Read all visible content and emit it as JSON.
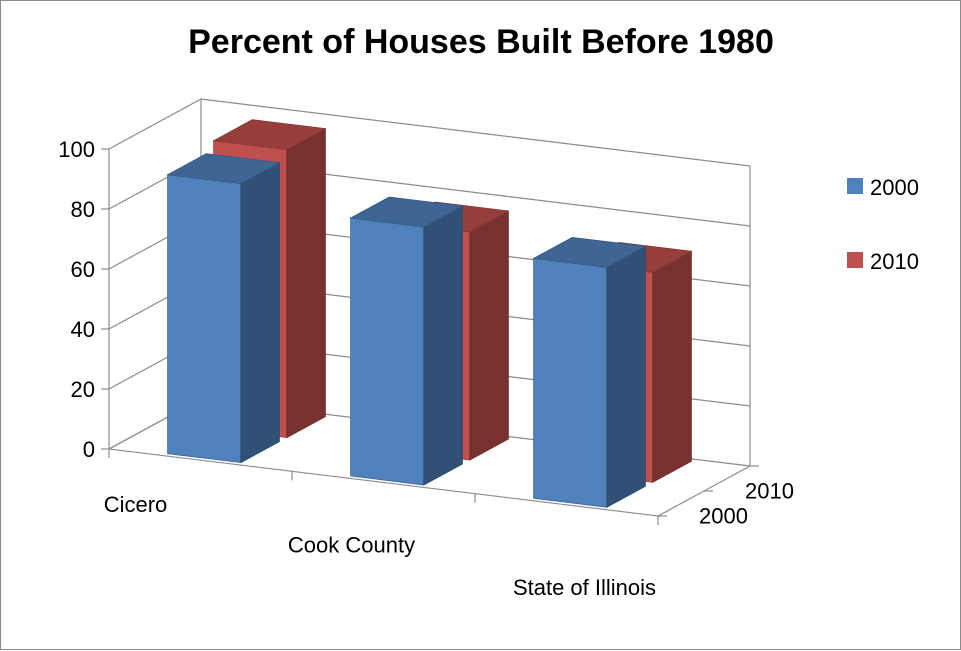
{
  "chart_data": {
    "type": "bar",
    "title": "Percent of Houses Built Before 1980",
    "xlabel": "",
    "ylabel": "",
    "categories": [
      "Cicero",
      "Cook County",
      "State of Illinois"
    ],
    "series": [
      {
        "name": "2000",
        "values": [
          93,
          86,
          80
        ],
        "color": "#4F81BD"
      },
      {
        "name": "2010",
        "values": [
          96,
          76,
          70
        ],
        "color": "#C0504D"
      }
    ],
    "ylim": [
      0,
      100
    ],
    "yticks": [
      "0",
      "20",
      "40",
      "60",
      "80",
      "100"
    ],
    "depth_labels": [
      "2010",
      "2000"
    ],
    "grid": true,
    "legend_position": "right",
    "projection": "3d"
  }
}
